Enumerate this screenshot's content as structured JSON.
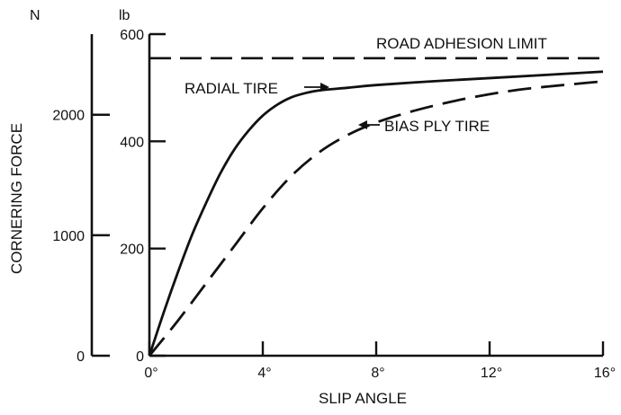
{
  "chart_data": {
    "type": "line",
    "title": "",
    "xlabel": "SLIP ANGLE",
    "ylabel": "CORNERING FORCE",
    "x_unit": "°",
    "xlim": [
      0,
      16
    ],
    "ylim": [
      0,
      600
    ],
    "x_ticks": [
      0,
      4,
      8,
      12,
      16
    ],
    "x_tick_labels": [
      "0°",
      "4°",
      "8°",
      "12°",
      "16°"
    ],
    "y_axes": [
      {
        "unit": "lb",
        "unit_label": "lb",
        "ticks": [
          0,
          200,
          400,
          600
        ],
        "tick_labels": [
          "0",
          "200",
          "400",
          "600"
        ]
      },
      {
        "unit": "N",
        "unit_label": "N",
        "ticks": [
          0,
          1000,
          2000
        ],
        "tick_labels": [
          "0",
          "1000",
          "2000"
        ],
        "lb_equivalent": [
          0,
          224.8,
          449.6
        ]
      }
    ],
    "reference_lines": [
      {
        "name": "ROAD ADHESION LIMIT",
        "y": 555,
        "style": "dashed"
      }
    ],
    "series": [
      {
        "name": "RADIAL TIRE",
        "style": "solid",
        "x": [
          0,
          0.5,
          1,
          1.5,
          2,
          2.5,
          3,
          3.5,
          4,
          4.5,
          5,
          5.5,
          6,
          7,
          8,
          10,
          12,
          14,
          16
        ],
        "y": [
          0,
          80,
          155,
          225,
          285,
          340,
          385,
          420,
          448,
          468,
          482,
          490,
          495,
          500,
          505,
          512,
          518,
          524,
          530
        ]
      },
      {
        "name": "BIAS PLY TIRE",
        "style": "dashed",
        "x": [
          0,
          1,
          2,
          3,
          4,
          5,
          6,
          7,
          8,
          9,
          10,
          11,
          12,
          13,
          14,
          15,
          16
        ],
        "y": [
          0,
          65,
          135,
          205,
          275,
          335,
          380,
          412,
          435,
          452,
          466,
          478,
          488,
          496,
          502,
          507,
          512
        ]
      }
    ],
    "annotations": [
      {
        "text": "RADIAL TIRE",
        "x": 6.2,
        "y": 498,
        "pointer": "right"
      },
      {
        "text": "BIAS PLY TIRE",
        "x": 7.2,
        "y": 427,
        "pointer": "left"
      }
    ],
    "grid": false,
    "legend": "none"
  }
}
